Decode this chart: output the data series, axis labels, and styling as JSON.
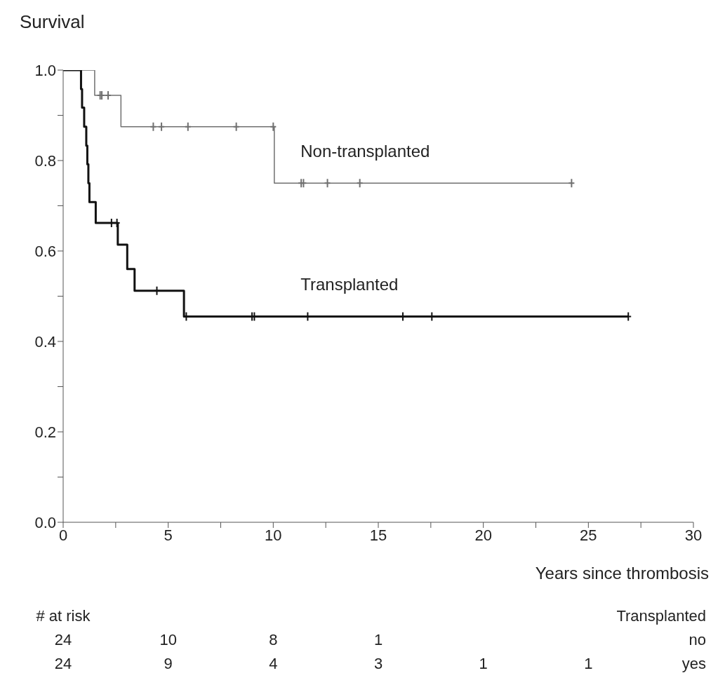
{
  "chart_data": {
    "type": "step",
    "ylabel": "Survival",
    "xlabel": "Years since thrombosis",
    "xlim": [
      0,
      30
    ],
    "xticks": [
      0,
      {
        "value": 2.5,
        "label": null
      },
      5,
      {
        "value": 7.5,
        "label": null
      },
      10,
      {
        "value": 12.5,
        "label": null
      },
      15,
      {
        "value": 17.5,
        "label": null
      },
      20,
      {
        "value": 22.5,
        "label": null
      },
      25,
      {
        "value": 27.5,
        "label": null
      },
      30
    ],
    "ylim": [
      0,
      1
    ],
    "yticks": [
      {
        "value": 0,
        "label": "0.0"
      },
      {
        "value": 0.1,
        "label": null
      },
      0.2,
      {
        "value": 0.3,
        "label": null
      },
      0.4,
      {
        "value": 0.5,
        "label": null
      },
      0.6,
      {
        "value": 0.7,
        "label": null
      },
      0.8,
      {
        "value": 0.9,
        "label": null
      },
      {
        "value": 1,
        "label": "1.0"
      }
    ],
    "series": [
      {
        "name": "Non-transplanted",
        "color": "#707070",
        "x": [
          0,
          1.5,
          2.75,
          10.05,
          24.2
        ],
        "values": [
          1,
          0.944,
          0.875,
          0.75,
          0.75
        ]
      },
      {
        "name": "Transplanted",
        "color": "#111111",
        "x": [
          0,
          0.85,
          0.9,
          1.0,
          1.1,
          1.15,
          1.2,
          1.25,
          1.55,
          2.6,
          3.05,
          3.4,
          5.75,
          26.9
        ],
        "values": [
          1,
          0.958,
          0.917,
          0.875,
          0.833,
          0.792,
          0.75,
          0.708,
          0.662,
          0.614,
          0.56,
          0.512,
          0.455,
          0.455
        ]
      },
      {
        "type": "scatter",
        "marker": "cross",
        "color": "#707070",
        "x": [
          1.76,
          1.84,
          2.14,
          4.29,
          4.68,
          5.94,
          8.24,
          10.0,
          11.33,
          11.44,
          12.58,
          14.12,
          24.2
        ],
        "values": [
          0.944,
          0.944,
          0.944,
          0.875,
          0.875,
          0.875,
          0.875,
          0.875,
          0.75,
          0.75,
          0.75,
          0.75,
          0.75
        ]
      },
      {
        "type": "scatter",
        "marker": "cross",
        "color": "#111111",
        "x": [
          2.3,
          2.56,
          4.46,
          5.86,
          8.99,
          9.1,
          11.64,
          16.17,
          17.55,
          26.9
        ],
        "values": [
          0.662,
          0.662,
          0.512,
          0.455,
          0.455,
          0.455,
          0.455,
          0.455,
          0.455,
          0.455
        ]
      }
    ],
    "annotations": [
      "# at risk\t\t\t\t\t\t\tTransplanted",
      "24\t10\t8\t1\t\t\t\tno",
      "24\t9\t4\t3\t1\t1\t\tyes"
    ]
  }
}
